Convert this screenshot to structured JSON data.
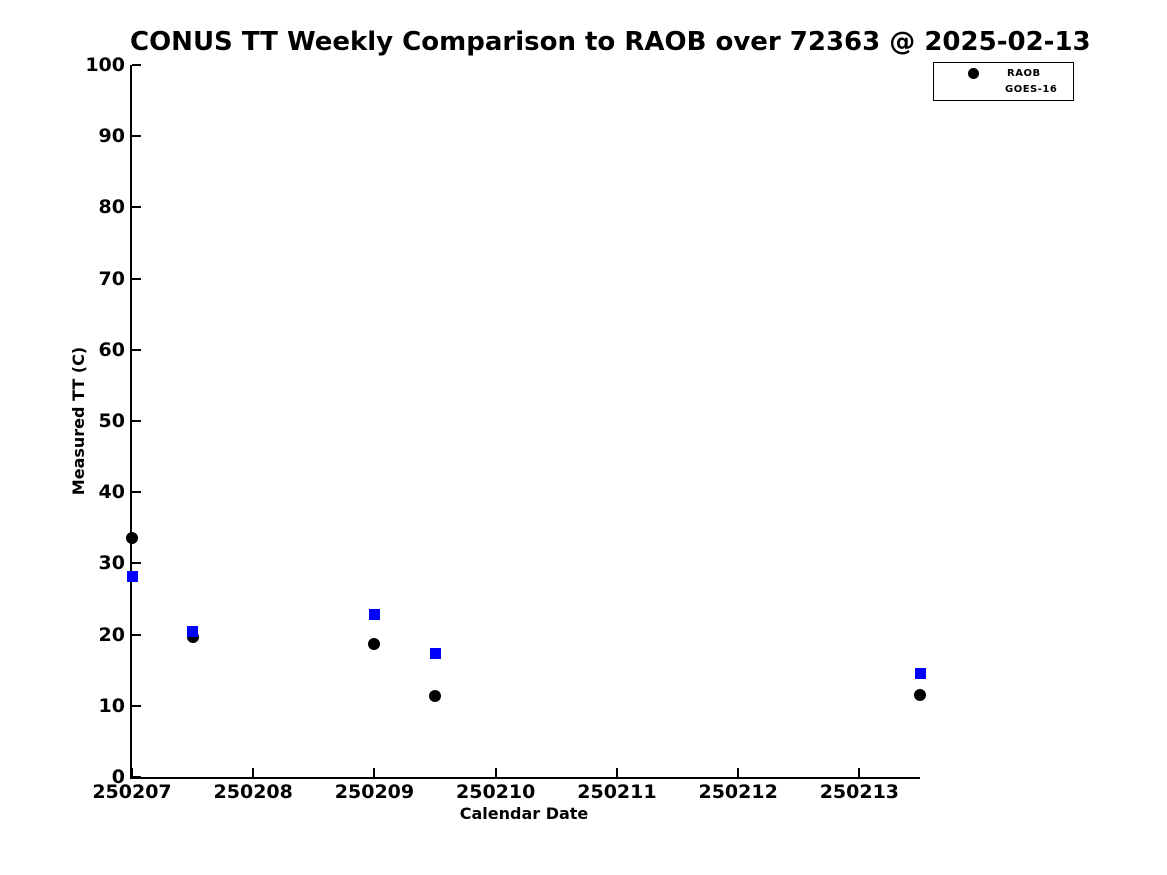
{
  "chart_data": {
    "type": "scatter",
    "title": "CONUS TT Weekly Comparison to RAOB over 72363 @ 2025-02-13",
    "xlabel": "Calendar Date",
    "ylabel": "Measured TT (C)",
    "xlim": [
      250207,
      250213.5
    ],
    "ylim": [
      0,
      100
    ],
    "x_ticks": [
      250207,
      250208,
      250209,
      250210,
      250211,
      250212,
      250213
    ],
    "x_tick_labels": [
      "250207",
      "250208",
      "250209",
      "250210",
      "250211",
      "250212",
      "250213"
    ],
    "y_ticks": [
      0,
      10,
      20,
      30,
      40,
      50,
      60,
      70,
      80,
      90,
      100
    ],
    "y_tick_labels": [
      "0",
      "10",
      "20",
      "30",
      "40",
      "50",
      "60",
      "70",
      "80",
      "90",
      "100"
    ],
    "grid": false,
    "legend_position": "top-right-outside",
    "series": [
      {
        "name": "RAOB",
        "marker": "circle",
        "color": "#000000",
        "x": [
          250207.0,
          250207.5,
          250209.0,
          250209.5,
          250213.5
        ],
        "y": [
          33.5,
          19.7,
          18.7,
          11.4,
          11.5
        ]
      },
      {
        "name": "GOES-16",
        "marker": "square",
        "color": "#0000ff",
        "x": [
          250207.0,
          250207.5,
          250209.0,
          250209.5,
          250213.5
        ],
        "y": [
          28.2,
          20.4,
          22.8,
          17.4,
          14.6
        ]
      }
    ]
  }
}
